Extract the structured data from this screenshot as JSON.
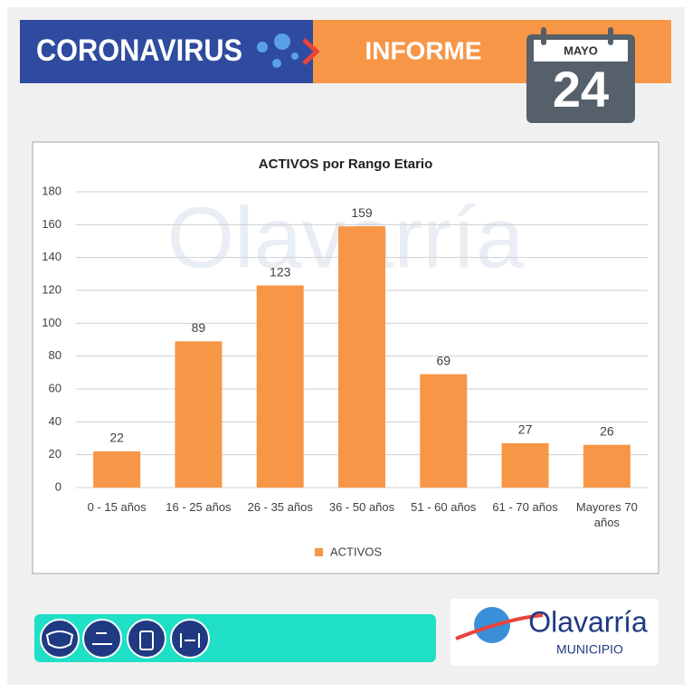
{
  "header": {
    "left": "CORONAVIRUS",
    "center": "INFORME",
    "month": "MAYO",
    "day": "24"
  },
  "logo": {
    "name": "Olavarría",
    "sub": "MUNICIPIO"
  },
  "chart_data": {
    "type": "bar",
    "title": "ACTIVOS por Rango Etario",
    "categories": [
      "0 - 15 años",
      "16 - 25 años",
      "26 - 35 años",
      "36 - 50 años",
      "51 - 60 años",
      "61 - 70 años",
      "Mayores 70 años"
    ],
    "series": [
      {
        "name": "ACTIVOS",
        "color": "#f79646",
        "values": [
          22,
          89,
          123,
          159,
          69,
          27,
          26
        ]
      }
    ],
    "ylim": [
      0,
      180
    ],
    "yticks": [
      0,
      20,
      40,
      60,
      80,
      100,
      120,
      140,
      160,
      180
    ],
    "grid": true,
    "legend": "bottom"
  }
}
